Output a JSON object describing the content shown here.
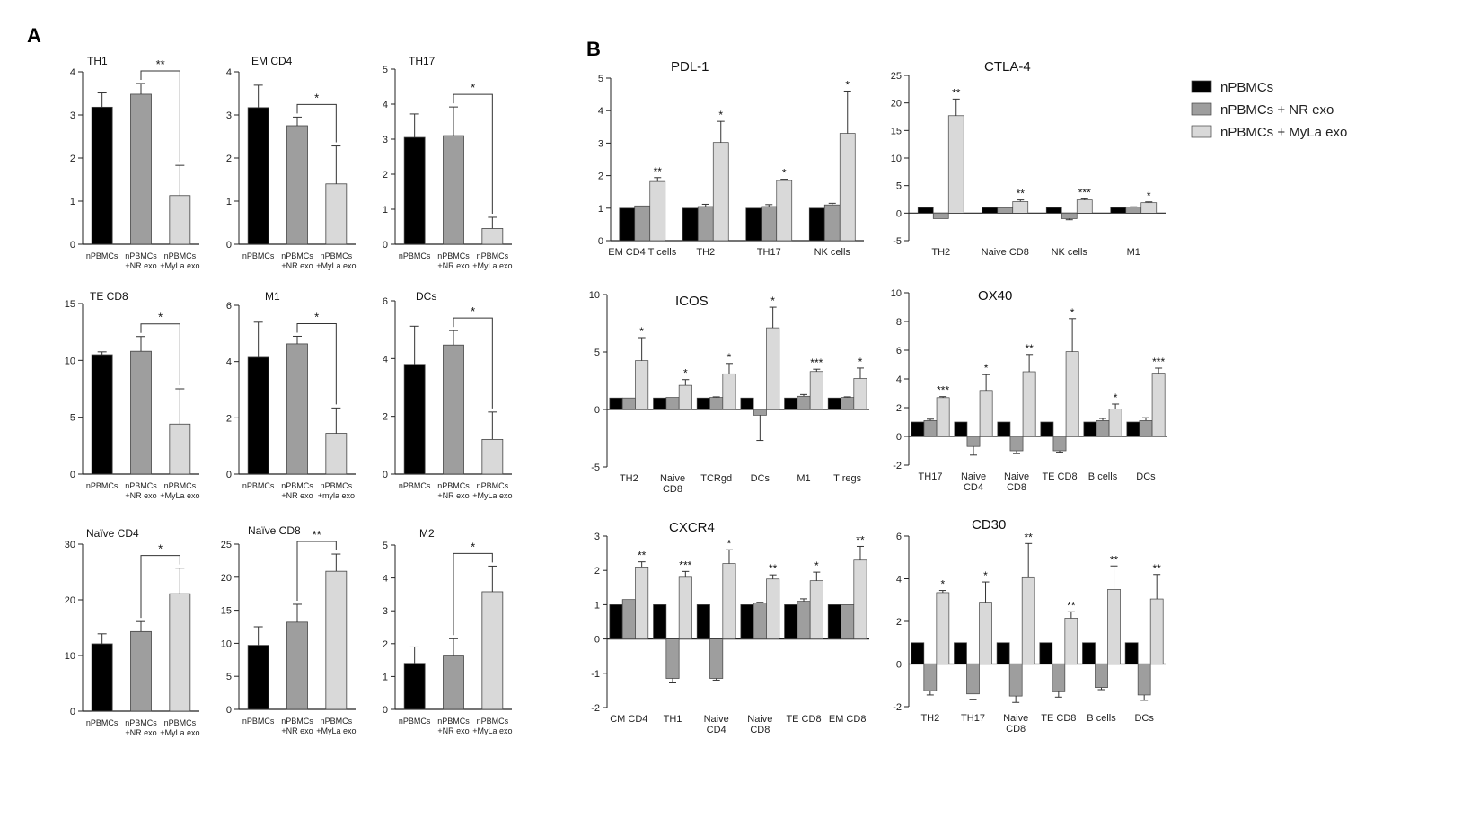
{
  "panel_labels": {
    "a": "A",
    "b": "B"
  },
  "colors": {
    "npbmc": "#000000",
    "nr": "#9e9e9e",
    "myla": "#d9d9d9",
    "axis": "#222222"
  },
  "legend": {
    "items": [
      {
        "label": "nPBMCs",
        "color": "#000000"
      },
      {
        "label": "nPBMCs + NR exo",
        "color": "#9e9e9e"
      },
      {
        "label": "nPBMCs + MyLa exo",
        "color": "#d9d9d9"
      }
    ]
  },
  "chart_data": [
    {
      "type": "bar",
      "title": "TH1",
      "ylim": [
        0,
        4
      ],
      "yticks": [
        "0",
        "1",
        "2",
        "3",
        "4"
      ],
      "categories": [
        [
          "nPBMCs"
        ],
        [
          "nPBMCs",
          "+NR exo"
        ],
        [
          "nPBMCs",
          "+MyLa exo"
        ]
      ],
      "values": [
        3.18,
        3.48,
        1.13
      ],
      "errors": [
        0.33,
        0.25,
        0.7
      ],
      "significance": [
        {
          "from": 1,
          "to": 2,
          "label": "**"
        }
      ]
    },
    {
      "type": "bar",
      "title": "EM CD4",
      "ylim": [
        0,
        4
      ],
      "yticks": [
        "0",
        "1",
        "2",
        "3",
        "4"
      ],
      "categories": [
        [
          "nPBMCs"
        ],
        [
          "nPBMCs",
          "+NR exo"
        ],
        [
          "nPBMCs",
          "+MyLa exo"
        ]
      ],
      "values": [
        3.17,
        2.75,
        1.4
      ],
      "errors": [
        0.52,
        0.2,
        0.88
      ],
      "significance": [
        {
          "from": 1,
          "to": 2,
          "label": "*"
        }
      ]
    },
    {
      "type": "bar",
      "title": "TH17",
      "ylim": [
        0,
        5
      ],
      "yticks": [
        "0",
        "1",
        "2",
        "3",
        "4",
        "5"
      ],
      "categories": [
        [
          "nPBMCs"
        ],
        [
          "nPBMCs",
          "+NR exo"
        ],
        [
          "nPBMCs",
          "+MyLa exo"
        ]
      ],
      "values": [
        3.05,
        3.1,
        0.45
      ],
      "errors": [
        0.67,
        0.82,
        0.32
      ],
      "significance": [
        {
          "from": 1,
          "to": 2,
          "label": "*"
        }
      ]
    },
    {
      "type": "bar",
      "title": "TE CD8",
      "ylim": [
        0,
        15
      ],
      "yticks": [
        "0",
        "5",
        "10",
        "15"
      ],
      "categories": [
        [
          "nPBMCs"
        ],
        [
          "nPBMCs",
          "+NR exo"
        ],
        [
          "nPBMCs",
          "+MyLa exo"
        ]
      ],
      "values": [
        10.5,
        10.8,
        4.4
      ],
      "errors": [
        0.25,
        1.3,
        3.1
      ],
      "significance": [
        {
          "from": 1,
          "to": 2,
          "label": "*"
        }
      ]
    },
    {
      "type": "bar",
      "title": "M1",
      "ylim": [
        0,
        6
      ],
      "yticks": [
        "0",
        "2",
        "4",
        "6"
      ],
      "categories": [
        [
          "nPBMCs"
        ],
        [
          "nPBMCs",
          "+NR exo"
        ],
        [
          "nPBMCs",
          "+myla exo"
        ]
      ],
      "values": [
        4.15,
        4.63,
        1.45
      ],
      "errors": [
        1.25,
        0.27,
        0.9
      ],
      "significance": [
        {
          "from": 1,
          "to": 2,
          "label": "*"
        }
      ]
    },
    {
      "type": "bar",
      "title": "DCs",
      "ylim": [
        0,
        6
      ],
      "yticks": [
        "0",
        "2",
        "4",
        "6"
      ],
      "categories": [
        [
          "nPBMCs"
        ],
        [
          "nPBMCs",
          "+NR exo"
        ],
        [
          "nPBMCs",
          "+MyLa exo"
        ]
      ],
      "values": [
        3.8,
        4.47,
        1.2
      ],
      "errors": [
        1.32,
        0.5,
        0.95
      ],
      "significance": [
        {
          "from": 1,
          "to": 2,
          "label": "*"
        }
      ]
    },
    {
      "type": "bar",
      "title": "Naïve CD4",
      "ylim": [
        0,
        30
      ],
      "yticks": [
        "0",
        "10",
        "20",
        "30"
      ],
      "categories": [
        [
          "nPBMCs"
        ],
        [
          "nPBMCs",
          "+NR exo"
        ],
        [
          "nPBMCs",
          "+MyLa exo"
        ]
      ],
      "values": [
        12.1,
        14.3,
        21.1
      ],
      "errors": [
        1.8,
        1.8,
        4.6
      ],
      "significance": [
        {
          "from": 1,
          "to": 2,
          "label": "*"
        }
      ]
    },
    {
      "type": "bar",
      "title": "Naïve CD8",
      "ylim": [
        0,
        25
      ],
      "yticks": [
        "0",
        "5",
        "10",
        "15",
        "20",
        "25"
      ],
      "categories": [
        [
          "nPBMCs"
        ],
        [
          "nPBMCs",
          "+NR exo"
        ],
        [
          "nPBMCs",
          "+MyLa exo"
        ]
      ],
      "values": [
        9.7,
        13.2,
        20.9
      ],
      "errors": [
        2.8,
        2.7,
        2.6
      ],
      "significance": [
        {
          "from": 1,
          "to": 2,
          "label": "**"
        }
      ]
    },
    {
      "type": "bar",
      "title": "M2",
      "ylim": [
        0,
        5
      ],
      "yticks": [
        "0",
        "1",
        "2",
        "3",
        "4",
        "5"
      ],
      "categories": [
        [
          "nPBMCs"
        ],
        [
          "nPBMCs",
          "+NR exo"
        ],
        [
          "nPBMCs",
          "+MyLa exo"
        ]
      ],
      "values": [
        1.4,
        1.65,
        3.58
      ],
      "errors": [
        0.5,
        0.5,
        0.78
      ],
      "significance": [
        {
          "from": 1,
          "to": 2,
          "label": "*"
        }
      ]
    },
    {
      "type": "bar",
      "title": "PDL-1",
      "ylim": [
        0,
        5
      ],
      "yticks": [
        "0",
        "1",
        "2",
        "3",
        "4",
        "5"
      ],
      "categories": [
        [
          "EM CD4 T cells"
        ],
        [
          "TH2"
        ],
        [
          "TH17"
        ],
        [
          "NK cells"
        ]
      ],
      "series": [
        {
          "name": "nPBMCs",
          "values": [
            1,
            1,
            1,
            1
          ],
          "errors": [
            0,
            0,
            0,
            0
          ]
        },
        {
          "name": "nPBMCs + NR exo",
          "values": [
            1.07,
            1.05,
            1.05,
            1.1
          ],
          "errors": [
            0,
            0.07,
            0.06,
            0.05
          ]
        },
        {
          "name": "nPBMCs + MyLa exo",
          "values": [
            1.82,
            3.02,
            1.85,
            3.3
          ],
          "errors": [
            0.12,
            0.65,
            0.04,
            1.3
          ]
        }
      ],
      "stars": [
        "**",
        "*",
        "*",
        "*"
      ]
    },
    {
      "type": "bar",
      "title": "CTLA-4",
      "ylim": [
        -5,
        25
      ],
      "yticks": [
        "-5",
        "0",
        "5",
        "10",
        "15",
        "20",
        "25"
      ],
      "categories": [
        [
          "TH2"
        ],
        [
          "Naive CD8"
        ],
        [
          "NK cells"
        ],
        [
          "M1"
        ]
      ],
      "series": [
        {
          "name": "nPBMCs",
          "values": [
            1,
            1,
            1,
            1
          ],
          "errors": [
            0,
            0,
            0,
            0
          ]
        },
        {
          "name": "nPBMCs + NR exo",
          "values": [
            -1,
            1,
            -1,
            1.1
          ],
          "errors": [
            0,
            0,
            0.2,
            0.05
          ]
        },
        {
          "name": "nPBMCs + MyLa exo",
          "values": [
            17.7,
            2.1,
            2.4,
            1.9
          ],
          "errors": [
            3,
            0.3,
            0.2,
            0.15
          ]
        }
      ],
      "stars": [
        "**",
        "**",
        "***",
        "*"
      ]
    },
    {
      "type": "bar",
      "title": "ICOS",
      "ylim": [
        -5,
        10
      ],
      "yticks": [
        "-5",
        "0",
        "5",
        "10"
      ],
      "categories": [
        [
          "TH2"
        ],
        [
          "Naive",
          "CD8"
        ],
        [
          "TCRgd"
        ],
        [
          "DCs"
        ],
        [
          "M1"
        ],
        [
          "T regs"
        ]
      ],
      "series": [
        {
          "name": "nPBMCs",
          "values": [
            1,
            1,
            1,
            1,
            1,
            1
          ],
          "errors": [
            0,
            0,
            0,
            0,
            0,
            0
          ]
        },
        {
          "name": "nPBMCs + NR exo",
          "values": [
            1,
            1.05,
            1.05,
            -0.5,
            1.15,
            1.05
          ],
          "errors": [
            0,
            0,
            0.05,
            2.2,
            0.15,
            0.05
          ]
        },
        {
          "name": "nPBMCs + MyLa exo",
          "values": [
            4.25,
            2.1,
            3.1,
            7.1,
            3.3,
            2.7
          ],
          "errors": [
            2,
            0.5,
            0.9,
            1.8,
            0.2,
            0.9
          ]
        }
      ],
      "stars": [
        "*",
        "*",
        "*",
        "*",
        "***",
        "*"
      ]
    },
    {
      "type": "bar",
      "title": "OX40",
      "ylim": [
        -2,
        10
      ],
      "yticks": [
        "-2",
        "0",
        "2",
        "4",
        "6",
        "8",
        "10"
      ],
      "categories": [
        [
          "TH17"
        ],
        [
          "Naive",
          "CD4"
        ],
        [
          "Naive",
          "CD8"
        ],
        [
          "TE CD8"
        ],
        [
          "B cells"
        ],
        [
          "DCs"
        ]
      ],
      "series": [
        {
          "name": "nPBMCs",
          "values": [
            1,
            1,
            1,
            1,
            1,
            1
          ],
          "errors": [
            0,
            0,
            0,
            0,
            0,
            0
          ]
        },
        {
          "name": "nPBMCs + NR exo",
          "values": [
            1.1,
            -0.7,
            -1,
            -1,
            1.1,
            1.1
          ],
          "errors": [
            0.1,
            0.6,
            0.2,
            0.1,
            0.15,
            0.2
          ]
        },
        {
          "name": "nPBMCs + MyLa exo",
          "values": [
            2.7,
            3.2,
            4.5,
            5.9,
            1.9,
            4.4
          ],
          "errors": [
            0.07,
            1.1,
            1.2,
            2.3,
            0.35,
            0.35
          ]
        }
      ],
      "stars": [
        "***",
        "*",
        "**",
        "*",
        "*",
        "***"
      ]
    },
    {
      "type": "bar",
      "title": "CXCR4",
      "ylim": [
        -2,
        3
      ],
      "yticks": [
        "-2",
        "-1",
        "0",
        "1",
        "2",
        "3"
      ],
      "categories": [
        [
          "CM CD4"
        ],
        [
          "TH1"
        ],
        [
          "Naive",
          "CD4"
        ],
        [
          "Naive",
          "CD8"
        ],
        [
          "TE CD8"
        ],
        [
          "EM CD8"
        ]
      ],
      "series": [
        {
          "name": "nPBMCs",
          "values": [
            1,
            1,
            1,
            1,
            1,
            1
          ],
          "errors": [
            0,
            0,
            0,
            0,
            0,
            0
          ]
        },
        {
          "name": "nPBMCs + NR exo",
          "values": [
            1.15,
            -1.15,
            -1.15,
            1.05,
            1.1,
            1
          ],
          "errors": [
            0,
            0.13,
            0.05,
            0.02,
            0.07,
            0
          ]
        },
        {
          "name": "nPBMCs + MyLa exo",
          "values": [
            2.1,
            1.8,
            2.2,
            1.75,
            1.7,
            2.3
          ],
          "errors": [
            0.15,
            0.17,
            0.4,
            0.12,
            0.25,
            0.4
          ]
        }
      ],
      "stars": [
        "**",
        "***",
        "*",
        "**",
        "*",
        "**"
      ]
    },
    {
      "type": "bar",
      "title": "CD30",
      "ylim": [
        -2,
        6
      ],
      "yticks": [
        "-2",
        "0",
        "2",
        "4",
        "6"
      ],
      "categories": [
        [
          "TH2"
        ],
        [
          "TH17"
        ],
        [
          "Naive",
          "CD8"
        ],
        [
          "TE CD8"
        ],
        [
          "B cells"
        ],
        [
          "DCs"
        ]
      ],
      "series": [
        {
          "name": "nPBMCs",
          "values": [
            1,
            1,
            1,
            1,
            1,
            1
          ],
          "errors": [
            0,
            0,
            0,
            0,
            0,
            0
          ]
        },
        {
          "name": "nPBMCs + NR exo",
          "values": [
            -1.25,
            -1.4,
            -1.5,
            -1.3,
            -1.1,
            -1.45
          ],
          "errors": [
            0.2,
            0.25,
            0.3,
            0.25,
            0.1,
            0.25
          ]
        },
        {
          "name": "nPBMCs + MyLa exo",
          "values": [
            3.35,
            2.9,
            4.05,
            2.15,
            3.5,
            3.05
          ],
          "errors": [
            0.1,
            0.95,
            1.6,
            0.3,
            1.1,
            1.15
          ]
        }
      ],
      "stars": [
        "*",
        "*",
        "**",
        "**",
        "**",
        "**"
      ]
    }
  ]
}
